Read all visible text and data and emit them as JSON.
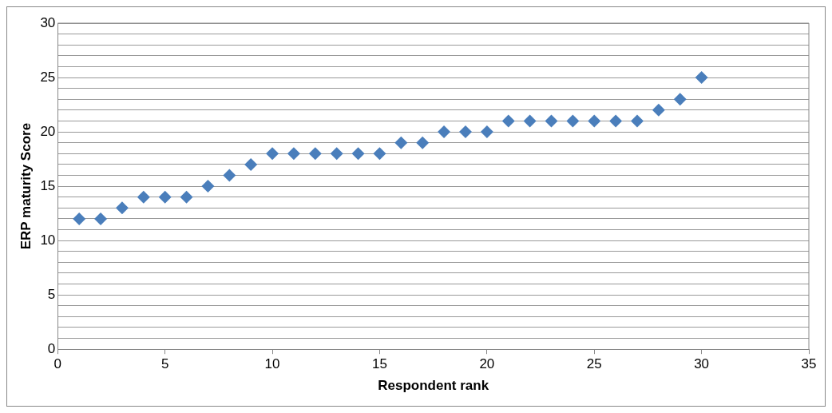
{
  "chart_data": {
    "type": "scatter",
    "xlabel": "Respondent rank",
    "ylabel": "ERP maturity Score",
    "x": [
      1,
      2,
      3,
      4,
      5,
      6,
      7,
      8,
      9,
      10,
      11,
      12,
      13,
      14,
      15,
      16,
      17,
      18,
      19,
      20,
      21,
      22,
      23,
      24,
      25,
      26,
      27,
      28,
      29,
      30
    ],
    "series": [
      {
        "color": "#4a7ebb",
        "values": [
          12,
          12,
          13,
          14,
          14,
          14,
          15,
          16,
          17,
          18,
          18,
          18,
          18,
          18,
          18,
          19,
          19,
          20,
          20,
          20,
          21,
          21,
          21,
          21,
          21,
          21,
          21,
          22,
          23,
          25
        ]
      }
    ],
    "xlim": [
      0,
      35
    ],
    "xticks": [
      0,
      5,
      10,
      15,
      20,
      25,
      30,
      35
    ],
    "ylim": [
      0,
      30
    ],
    "yticks": [
      0,
      {
        "value": 1,
        "label": null
      },
      {
        "value": 2,
        "label": null
      },
      {
        "value": 3,
        "label": null
      },
      {
        "value": 4,
        "label": null
      },
      5,
      {
        "value": 6,
        "label": null
      },
      {
        "value": 7,
        "label": null
      },
      {
        "value": 8,
        "label": null
      },
      {
        "value": 9,
        "label": null
      },
      10,
      {
        "value": 11,
        "label": null
      },
      {
        "value": 12,
        "label": null
      },
      {
        "value": 13,
        "label": null
      },
      {
        "value": 14,
        "label": null
      },
      15,
      {
        "value": 16,
        "label": null
      },
      {
        "value": 17,
        "label": null
      },
      {
        "value": 18,
        "label": null
      },
      {
        "value": 19,
        "label": null
      },
      20,
      {
        "value": 21,
        "label": null
      },
      {
        "value": 22,
        "label": null
      },
      {
        "value": 23,
        "label": null
      },
      {
        "value": 24,
        "label": null
      },
      25,
      {
        "value": 26,
        "label": null
      },
      {
        "value": 27,
        "label": null
      },
      {
        "value": 28,
        "label": null
      },
      {
        "value": 29,
        "label": null
      },
      30
    ],
    "grid": "y",
    "marker": "diamond",
    "legend": false
  }
}
